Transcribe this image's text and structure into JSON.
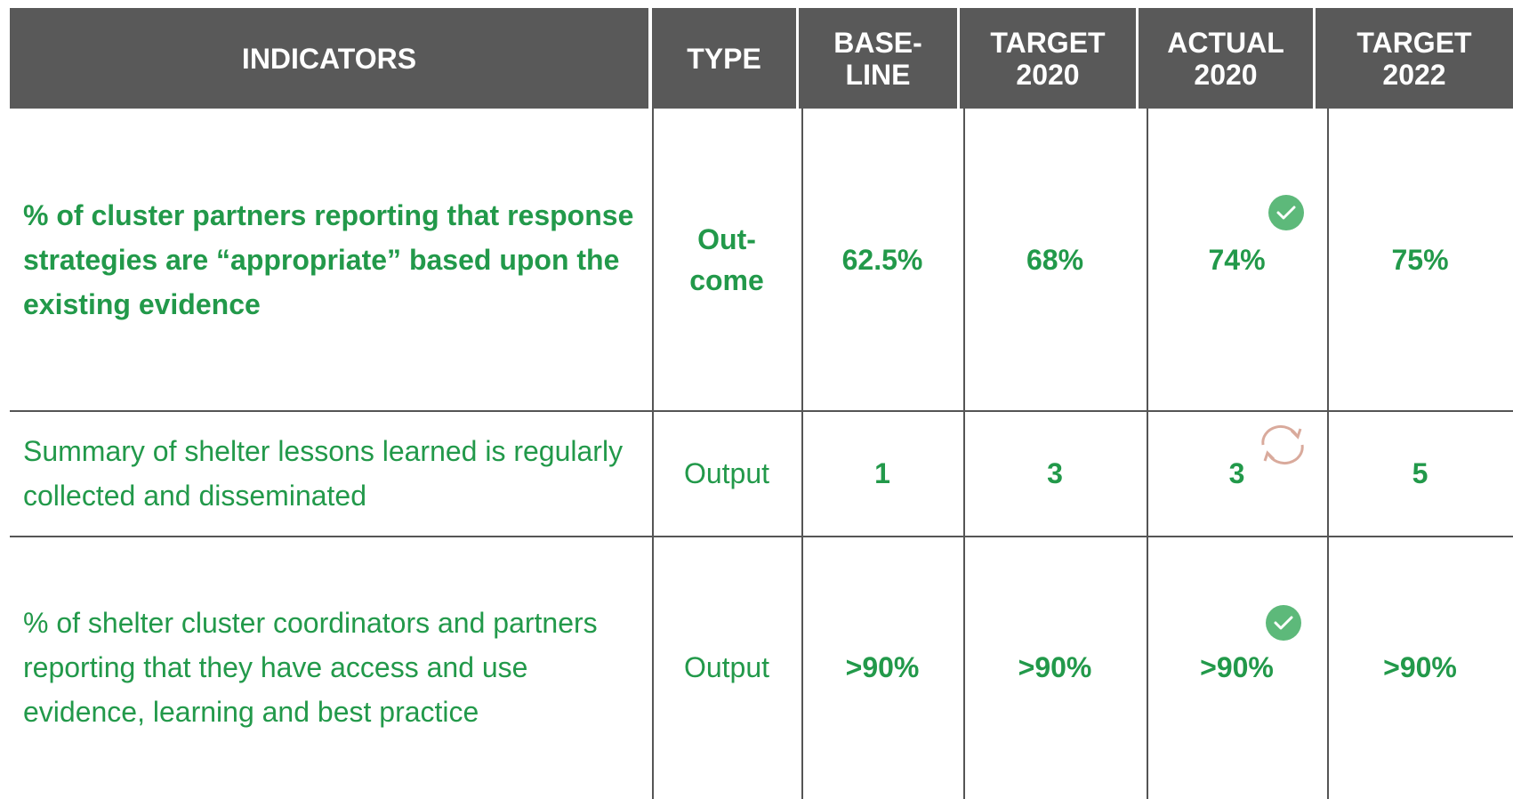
{
  "header": [
    [
      "INDICATORS"
    ],
    [
      "TYPE"
    ],
    [
      "BASE-",
      "LINE"
    ],
    [
      "TARGET",
      "2020"
    ],
    [
      "ACTUAL",
      "2020"
    ],
    [
      "TARGET",
      "2022"
    ]
  ],
  "rows": [
    {
      "indicator": "% of cluster partners reporting that response strategies are “appropriate” based upon the existing evidence",
      "type": [
        "Out-",
        "come"
      ],
      "values": [
        "62.5%",
        "68%",
        "74%",
        "75%"
      ]
    },
    {
      "indicator": "Summary of shelter lessons learned is regularly collected and disseminated",
      "type": [
        "Output"
      ],
      "values": [
        "1",
        "3",
        "3",
        "5"
      ]
    },
    {
      "indicator": "% of shelter cluster coordinators and partners reporting that they have access and use evidence, learning and best practice",
      "type": [
        "Output"
      ],
      "values": [
        ">90%",
        ">90%",
        ">90%",
        ">90%"
      ]
    }
  ]
}
